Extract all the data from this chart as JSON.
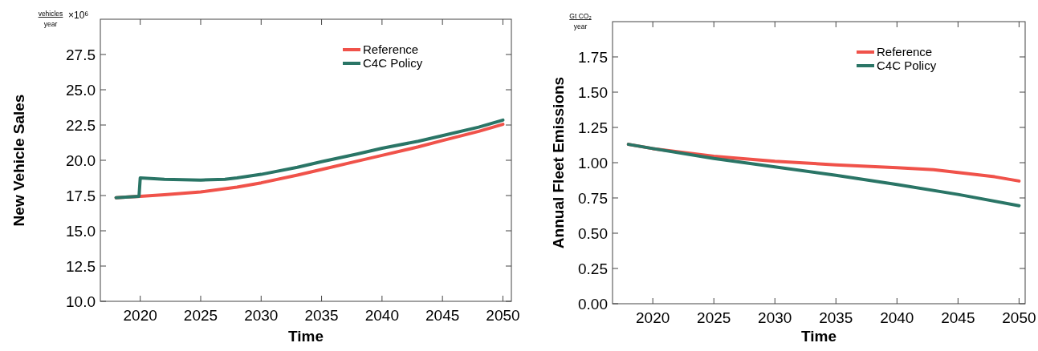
{
  "chart_data": [
    {
      "type": "line",
      "xlabel": "Time",
      "ylabel": "New Vehicle Sales",
      "annotations": [
        "vehicles",
        "year",
        "×10⁶"
      ],
      "xlim": [
        2016.7,
        2050.7
      ],
      "xticks": [
        2020,
        2025,
        2030,
        2035,
        2040,
        2045,
        2050
      ],
      "ylim": [
        10,
        30
      ],
      "yticks": [
        {
          "value": 10,
          "label": "10.0"
        },
        12.5,
        {
          "value": 15,
          "label": "15.0"
        },
        17.5,
        {
          "value": 20,
          "label": "20.0"
        },
        22.5,
        {
          "value": 25,
          "label": "25.0"
        },
        27.5
      ],
      "legend": "top right",
      "line_style": "solid",
      "marker": "none",
      "series": [
        {
          "name": "Reference",
          "color": "#f0524a",
          "x": [
            2018,
            2019,
            2020,
            2022,
            2025,
            2028,
            2030,
            2033,
            2035,
            2038,
            2040,
            2043,
            2045,
            2048,
            2050
          ],
          "values": [
            17.35,
            17.4,
            17.45,
            17.55,
            17.75,
            18.1,
            18.4,
            18.95,
            19.35,
            19.95,
            20.35,
            20.95,
            21.4,
            22.05,
            22.55
          ]
        },
        {
          "name": "C4C Policy",
          "color": "#2a7566",
          "x": [
            2018,
            2019.9,
            2020,
            2022,
            2025,
            2027,
            2028,
            2030,
            2033,
            2035,
            2038,
            2040,
            2043,
            2045,
            2048,
            2050
          ],
          "values": [
            17.35,
            17.45,
            18.75,
            18.65,
            18.6,
            18.65,
            18.75,
            19.0,
            19.5,
            19.9,
            20.45,
            20.85,
            21.35,
            21.75,
            22.35,
            22.85
          ]
        }
      ]
    },
    {
      "type": "line",
      "xlabel": "Time",
      "ylabel": "Annual Fleet Emissions",
      "annotations": [
        "Gt CO₂",
        "year"
      ],
      "xlim": [
        2016.7,
        2050.5
      ],
      "xticks": [
        2020,
        2025,
        2030,
        2035,
        2040,
        2045,
        2050
      ],
      "ylim": [
        0,
        2
      ],
      "yticks": [
        {
          "value": 0,
          "label": "0.00"
        },
        0.25,
        {
          "value": 0.5,
          "label": "0.50"
        },
        0.75,
        {
          "value": 1,
          "label": "1.00"
        },
        1.25,
        {
          "value": 1.5,
          "label": "1.50"
        },
        1.75
      ],
      "legend": "top right",
      "line_style": "solid",
      "marker": "none",
      "series": [
        {
          "name": "Reference",
          "color": "#f0524a",
          "x": [
            2018,
            2020,
            2025,
            2030,
            2035,
            2040,
            2043,
            2045,
            2048,
            2050
          ],
          "values": [
            1.13,
            1.1,
            1.045,
            1.01,
            0.985,
            0.965,
            0.95,
            0.93,
            0.9,
            0.87
          ]
        },
        {
          "name": "C4C Policy",
          "color": "#2a7566",
          "x": [
            2018,
            2020,
            2025,
            2030,
            2035,
            2040,
            2045,
            2050
          ],
          "values": [
            1.13,
            1.1,
            1.03,
            0.97,
            0.91,
            0.845,
            0.775,
            0.695
          ]
        }
      ]
    }
  ]
}
